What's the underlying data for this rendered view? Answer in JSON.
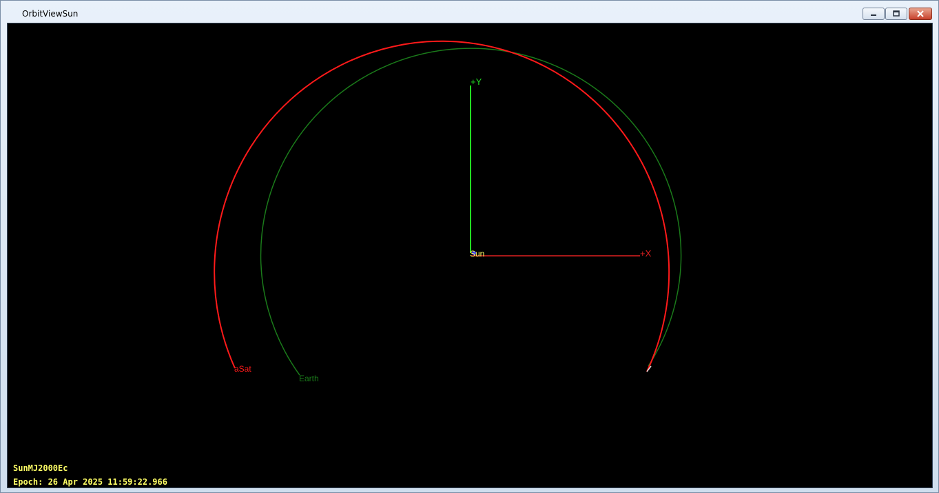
{
  "window": {
    "title": "OrbitViewSun"
  },
  "scene": {
    "colors": {
      "background": "#000000",
      "x_axis": "#e02020",
      "y_axis": "#22dd22",
      "asat_orbit": "#ff1a1a",
      "earth_orbit": "#1a7a1a",
      "sun_label": "#ffff66",
      "overlay_text": "#ffff66"
    },
    "axes": {
      "x_label": "+X",
      "y_label": "+Y"
    },
    "bodies": {
      "sun_label": "Sun",
      "asat_label": "aSat",
      "earth_label": "Earth"
    },
    "coordinate_system": "SunMJ2000Ec",
    "epoch": "Epoch: 26 Apr 2025 11:59:22.966"
  }
}
